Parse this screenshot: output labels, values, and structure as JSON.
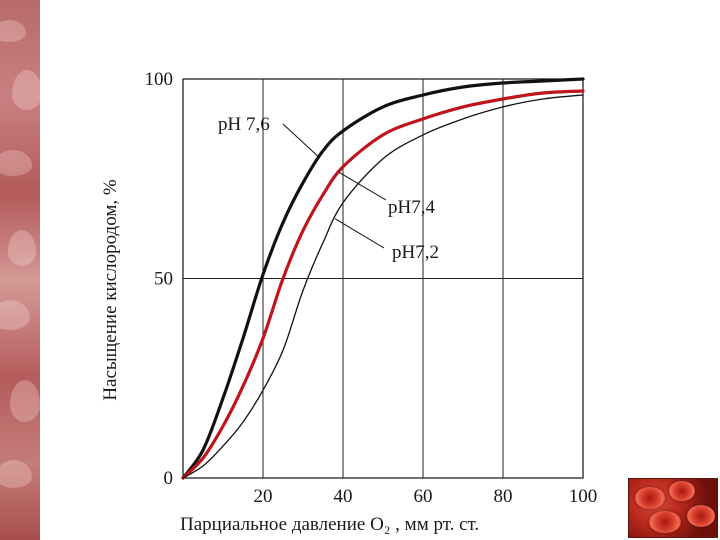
{
  "chart_data": {
    "type": "line",
    "title": "",
    "xlabel": "Парциальное давление O₂ , мм рт. ст.",
    "ylabel": "Насыщение кислородом, %",
    "xlim": [
      0,
      100
    ],
    "ylim": [
      0,
      100
    ],
    "x_ticks": [
      "20",
      "40",
      "60",
      "80",
      "100"
    ],
    "y_ticks": [
      "0",
      "50",
      "100"
    ],
    "grid": true,
    "series": [
      {
        "name": "pH 7,6",
        "color": "#111111",
        "weight": "thick",
        "x": [
          0,
          5,
          10,
          15,
          20,
          25,
          30,
          35,
          40,
          50,
          60,
          70,
          80,
          90,
          100
        ],
        "y": [
          0,
          7,
          20,
          35,
          51,
          64,
          74,
          82,
          87,
          93,
          96,
          98,
          99,
          99.5,
          100
        ]
      },
      {
        "name": "pH7,4",
        "color": "#c0141c",
        "weight": "thick",
        "x": [
          0,
          5,
          10,
          15,
          20,
          25,
          30,
          35,
          40,
          50,
          60,
          70,
          80,
          90,
          100
        ],
        "y": [
          0,
          5,
          13,
          23,
          35,
          50,
          62,
          71,
          78,
          86,
          90,
          93,
          95,
          96.5,
          97
        ]
      },
      {
        "name": "pH7,2",
        "color": "#111111",
        "weight": "thin",
        "x": [
          0,
          5,
          10,
          15,
          20,
          25,
          30,
          35,
          40,
          50,
          60,
          70,
          80,
          90,
          100
        ],
        "y": [
          0,
          3,
          8,
          14,
          22,
          32,
          47,
          59,
          69,
          80,
          86,
          90,
          93,
          95,
          96
        ]
      }
    ]
  }
}
